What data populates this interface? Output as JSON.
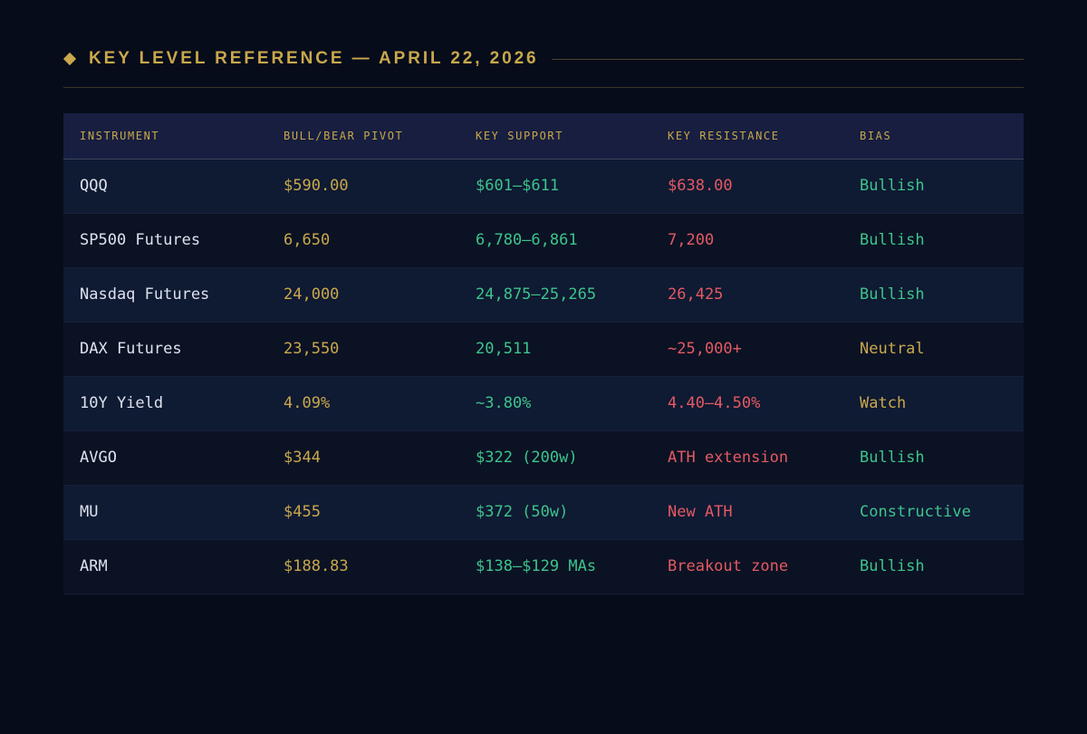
{
  "header": {
    "title": "KEY LEVEL REFERENCE — APRIL 22, 2026"
  },
  "colors": {
    "gold": "#c9a84c",
    "green": "#3dc48b",
    "red": "#e35a62",
    "background": "#070c1b"
  },
  "table": {
    "columns": [
      "INSTRUMENT",
      "BULL/BEAR PIVOT",
      "KEY SUPPORT",
      "KEY RESISTANCE",
      "BIAS"
    ],
    "rows": [
      {
        "instrument": "QQQ",
        "pivot": "$590.00",
        "support": "$601–$611",
        "resistance": "$638.00",
        "bias": "Bullish",
        "bias_color": "green"
      },
      {
        "instrument": "SP500 Futures",
        "pivot": "6,650",
        "support": "6,780–6,861",
        "resistance": "7,200",
        "bias": "Bullish",
        "bias_color": "green"
      },
      {
        "instrument": "Nasdaq Futures",
        "pivot": "24,000",
        "support": "24,875–25,265",
        "resistance": "26,425",
        "bias": "Bullish",
        "bias_color": "green"
      },
      {
        "instrument": "DAX Futures",
        "pivot": "23,550",
        "support": "20,511",
        "resistance": "~25,000+",
        "bias": "Neutral",
        "bias_color": "gold"
      },
      {
        "instrument": "10Y Yield",
        "pivot": "4.09%",
        "support": "~3.80%",
        "resistance": "4.40–4.50%",
        "bias": "Watch",
        "bias_color": "gold"
      },
      {
        "instrument": "AVGO",
        "pivot": "$344",
        "support": "$322 (200w)",
        "resistance": "ATH extension",
        "bias": "Bullish",
        "bias_color": "green"
      },
      {
        "instrument": "MU",
        "pivot": "$455",
        "support": "$372 (50w)",
        "resistance": "New ATH",
        "bias": "Constructive",
        "bias_color": "green"
      },
      {
        "instrument": "ARM",
        "pivot": "$188.83",
        "support": "$138–$129 MAs",
        "resistance": "Breakout zone",
        "bias": "Bullish",
        "bias_color": "green"
      }
    ]
  }
}
